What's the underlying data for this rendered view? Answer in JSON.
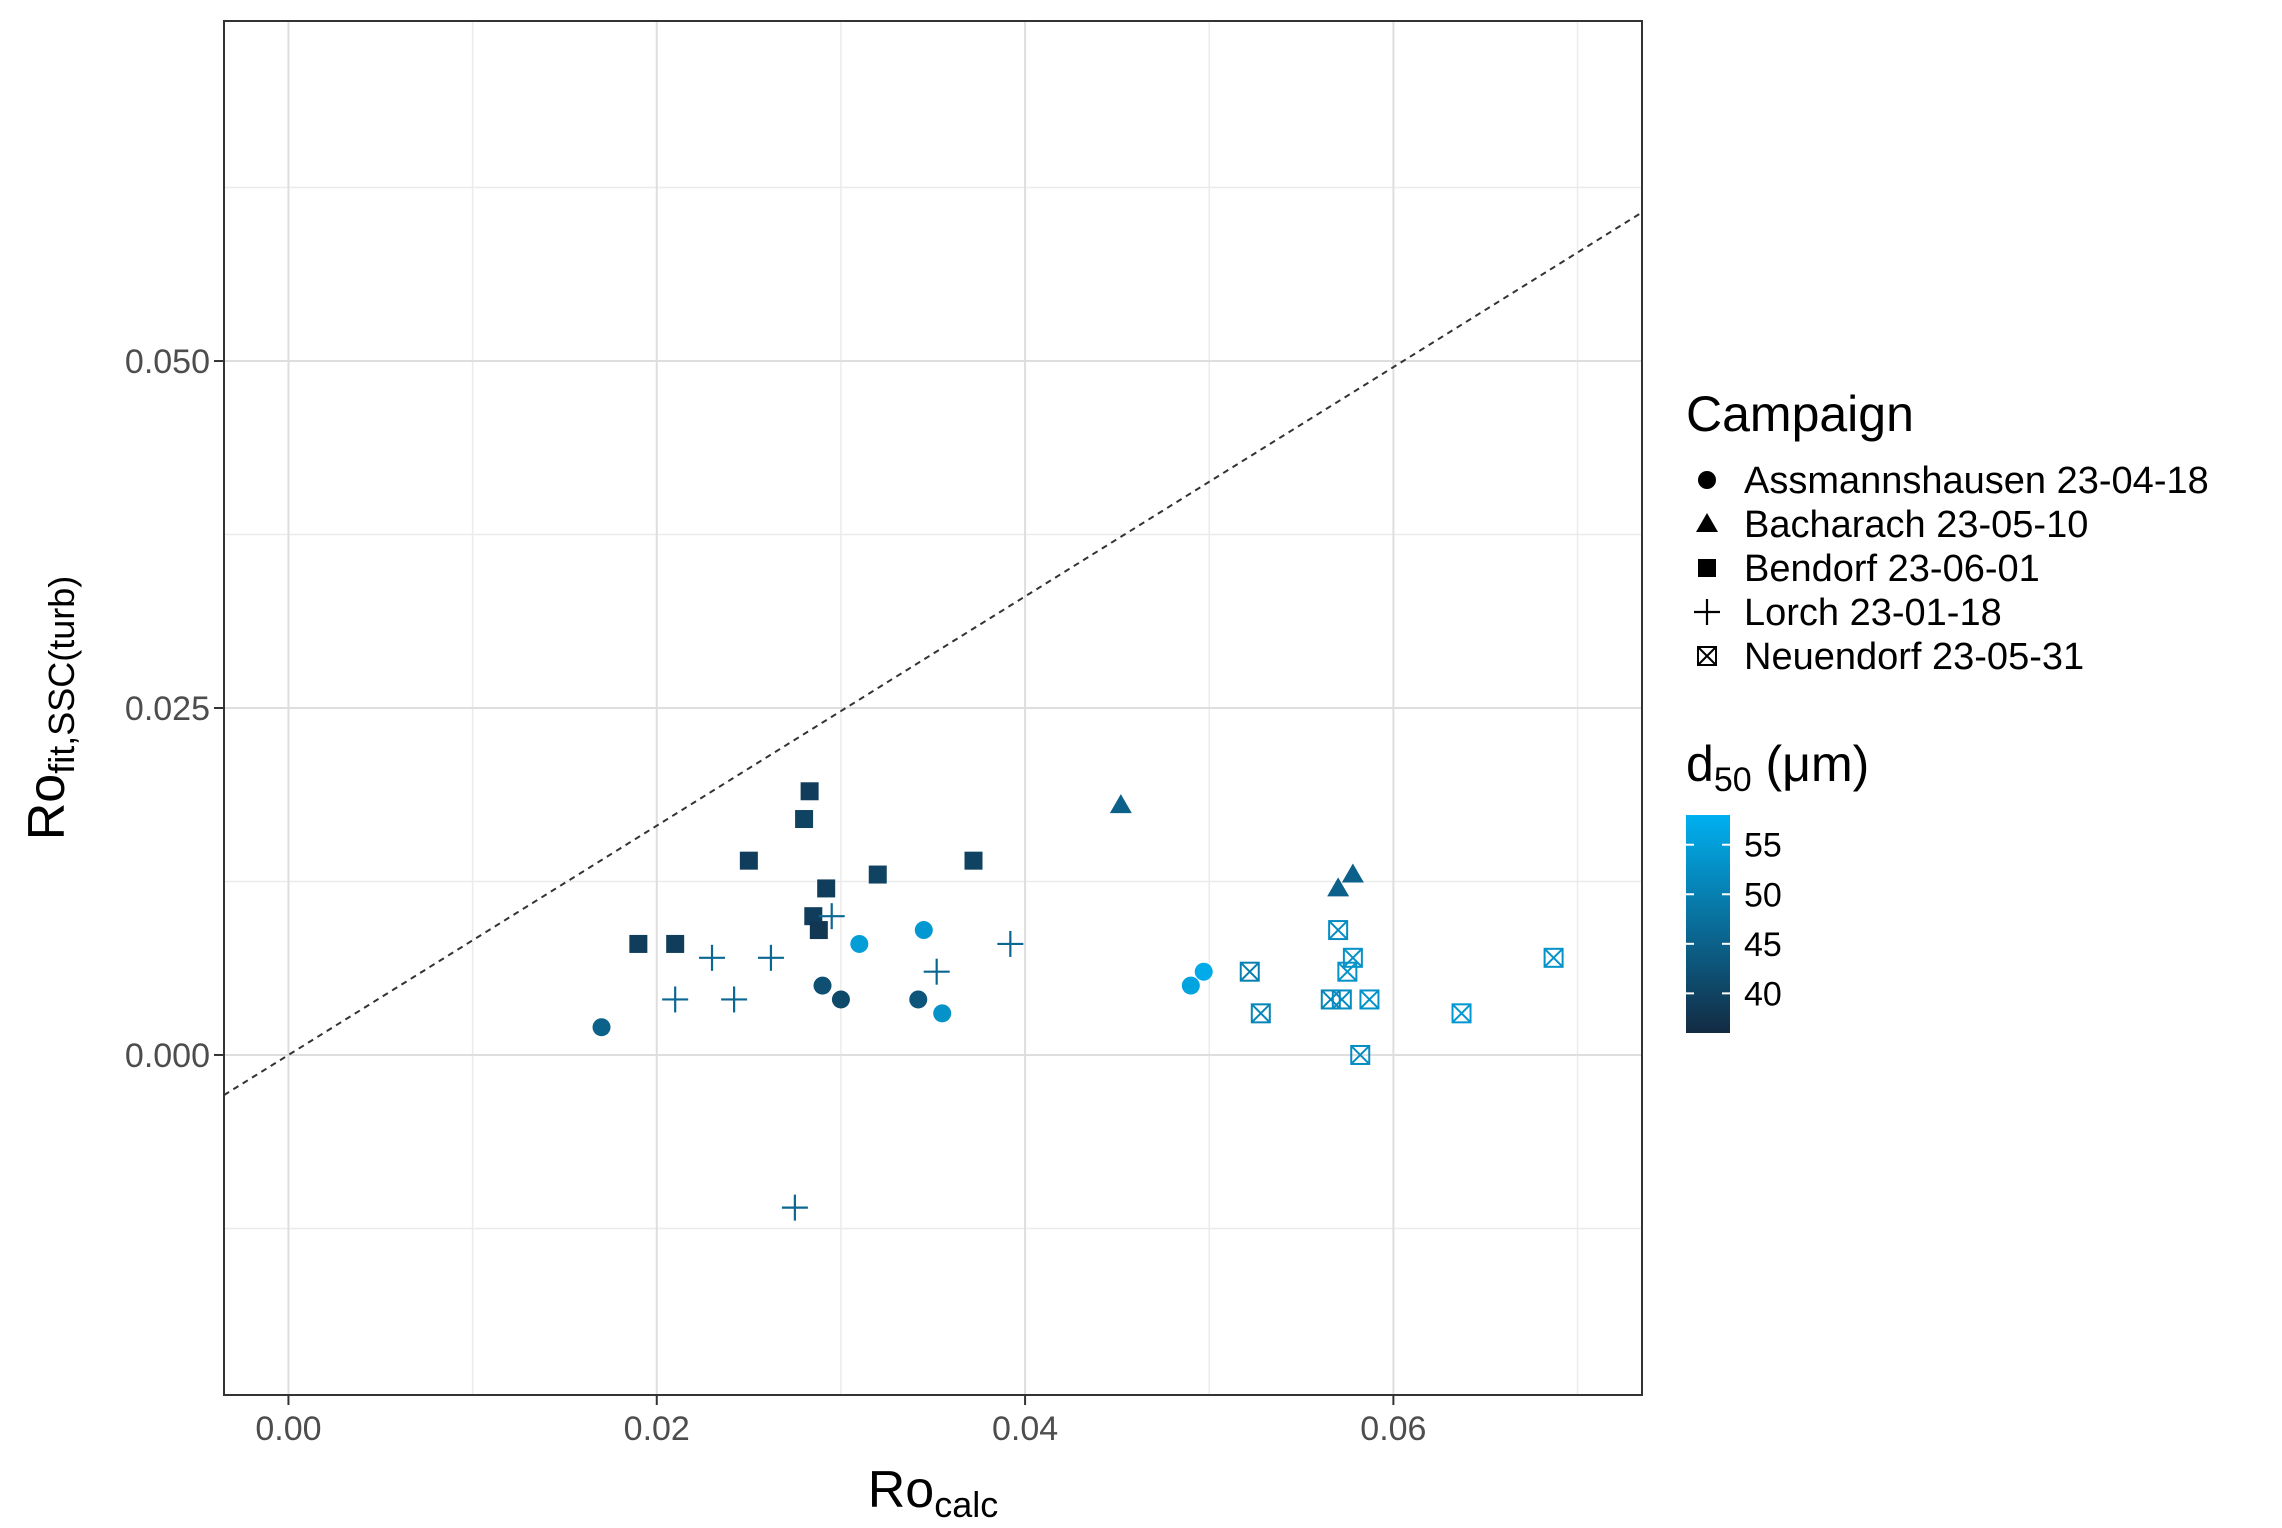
{
  "chart_data": {
    "type": "scatter",
    "xlabel": {
      "main": "Ro",
      "sub": "calc"
    },
    "ylabel": {
      "main": "Ro",
      "sub": "fit,SSC(turb)"
    },
    "xlim": [
      -0.0035,
      0.0735
    ],
    "ylim": [
      -0.0245,
      0.0745
    ],
    "x_ticks": [
      0.0,
      0.02,
      0.04,
      0.06
    ],
    "x_tick_labels": [
      "0.00",
      "0.02",
      "0.04",
      "0.06"
    ],
    "y_ticks": [
      0.0,
      0.025,
      0.05
    ],
    "y_tick_labels": [
      "0.000",
      "0.025",
      "0.050"
    ],
    "x_minor": [
      0.01,
      0.03,
      0.05,
      0.07
    ],
    "y_minor": [
      -0.0125,
      0.0125,
      0.0375,
      0.0625
    ],
    "grid": true,
    "reference_line": {
      "style": "dashed",
      "slope": 0.826,
      "intercept": 0.0
    },
    "legend_shape": {
      "title": "Campaign",
      "position": "right",
      "entries": [
        {
          "label": "Assmannshausen 23-04-18",
          "shape": "circle"
        },
        {
          "label": "Bacharach 23-05-10",
          "shape": "triangle"
        },
        {
          "label": "Bendorf 23-06-01",
          "shape": "square"
        },
        {
          "label": "Lorch 23-01-18",
          "shape": "plus"
        },
        {
          "label": "Neuendorf 23-05-31",
          "shape": "boxcross"
        }
      ]
    },
    "legend_color": {
      "title_main": "d",
      "title_sub": "50",
      "title_rest": " (μm)",
      "range": [
        36,
        58
      ],
      "ticks": [
        40,
        45,
        50,
        55
      ],
      "tick_labels": [
        "40",
        "45",
        "50",
        "55"
      ],
      "low_color": "#132b43",
      "high_color": "#00b0f0"
    },
    "series": [
      {
        "name": "Assmannshausen 23-04-18",
        "shape": "circle",
        "points": [
          {
            "x": 0.017,
            "y": 0.002,
            "d50": 45
          },
          {
            "x": 0.029,
            "y": 0.005,
            "d50": 42
          },
          {
            "x": 0.03,
            "y": 0.004,
            "d50": 41
          },
          {
            "x": 0.031,
            "y": 0.008,
            "d50": 55
          },
          {
            "x": 0.0342,
            "y": 0.004,
            "d50": 43
          },
          {
            "x": 0.0345,
            "y": 0.009,
            "d50": 54
          },
          {
            "x": 0.0355,
            "y": 0.003,
            "d50": 53
          },
          {
            "x": 0.049,
            "y": 0.005,
            "d50": 56
          },
          {
            "x": 0.0497,
            "y": 0.006,
            "d50": 57
          }
        ]
      },
      {
        "name": "Bacharach 23-05-10",
        "shape": "triangle",
        "points": [
          {
            "x": 0.0452,
            "y": 0.018,
            "d50": 45
          },
          {
            "x": 0.057,
            "y": 0.012,
            "d50": 45
          },
          {
            "x": 0.0578,
            "y": 0.013,
            "d50": 45
          }
        ]
      },
      {
        "name": "Bendorf 23-06-01",
        "shape": "square",
        "points": [
          {
            "x": 0.019,
            "y": 0.008,
            "d50": 39
          },
          {
            "x": 0.021,
            "y": 0.008,
            "d50": 39
          },
          {
            "x": 0.025,
            "y": 0.014,
            "d50": 39
          },
          {
            "x": 0.028,
            "y": 0.017,
            "d50": 40
          },
          {
            "x": 0.0283,
            "y": 0.019,
            "d50": 39
          },
          {
            "x": 0.0285,
            "y": 0.01,
            "d50": 39
          },
          {
            "x": 0.0288,
            "y": 0.009,
            "d50": 38
          },
          {
            "x": 0.0292,
            "y": 0.012,
            "d50": 39
          },
          {
            "x": 0.032,
            "y": 0.013,
            "d50": 40
          },
          {
            "x": 0.0372,
            "y": 0.014,
            "d50": 40
          }
        ]
      },
      {
        "name": "Lorch 23-01-18",
        "shape": "plus",
        "points": [
          {
            "x": 0.021,
            "y": 0.004,
            "d50": 46
          },
          {
            "x": 0.023,
            "y": 0.007,
            "d50": 46
          },
          {
            "x": 0.0242,
            "y": 0.004,
            "d50": 46
          },
          {
            "x": 0.0262,
            "y": 0.007,
            "d50": 46
          },
          {
            "x": 0.0275,
            "y": -0.011,
            "d50": 46
          },
          {
            "x": 0.0295,
            "y": 0.01,
            "d50": 46
          },
          {
            "x": 0.0352,
            "y": 0.006,
            "d50": 46
          },
          {
            "x": 0.0392,
            "y": 0.008,
            "d50": 46
          }
        ]
      },
      {
        "name": "Neuendorf 23-05-31",
        "shape": "boxcross",
        "points": [
          {
            "x": 0.0522,
            "y": 0.006,
            "d50": 50
          },
          {
            "x": 0.0528,
            "y": 0.003,
            "d50": 51
          },
          {
            "x": 0.0566,
            "y": 0.004,
            "d50": 51
          },
          {
            "x": 0.057,
            "y": 0.009,
            "d50": 52
          },
          {
            "x": 0.0572,
            "y": 0.004,
            "d50": 52
          },
          {
            "x": 0.0575,
            "y": 0.006,
            "d50": 53
          },
          {
            "x": 0.0578,
            "y": 0.007,
            "d50": 53
          },
          {
            "x": 0.0582,
            "y": 0.0,
            "d50": 52
          },
          {
            "x": 0.0587,
            "y": 0.004,
            "d50": 53
          },
          {
            "x": 0.0637,
            "y": 0.003,
            "d50": 54
          },
          {
            "x": 0.0687,
            "y": 0.007,
            "d50": 53
          }
        ]
      }
    ]
  }
}
